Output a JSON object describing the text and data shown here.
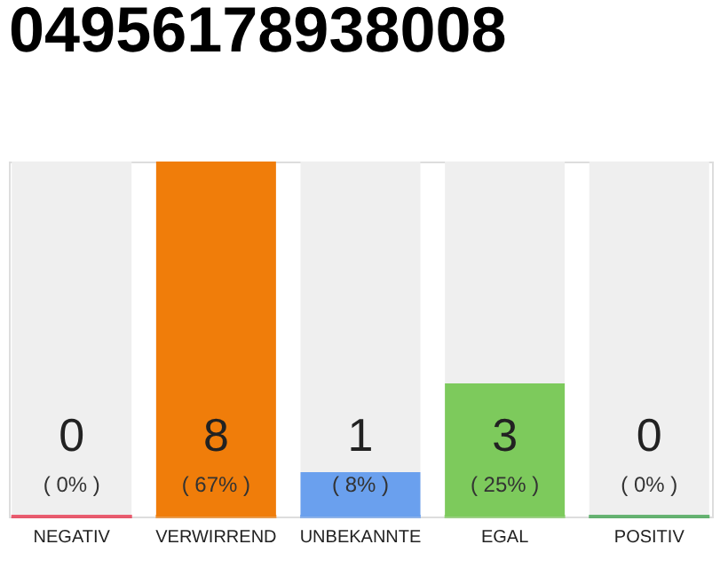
{
  "chart_data": {
    "type": "bar",
    "title": "04956178938008",
    "categories": [
      "NEGATIV",
      "VERWIRREND",
      "UNBEKANNTE",
      "EGAL",
      "POSITIV"
    ],
    "values": [
      0,
      8,
      1,
      3,
      0
    ],
    "colors": [
      "#e8203a",
      "#f07d0a",
      "#6aa0ee",
      "#7dca5c",
      "#2e9b3f"
    ],
    "ylim": [
      0,
      8
    ],
    "tick_labels": "x",
    "data_labels": true,
    "annotations": [
      "( 0% )",
      "( 67% )",
      "( 8% )",
      "( 25% )",
      "( 0% )"
    ]
  }
}
